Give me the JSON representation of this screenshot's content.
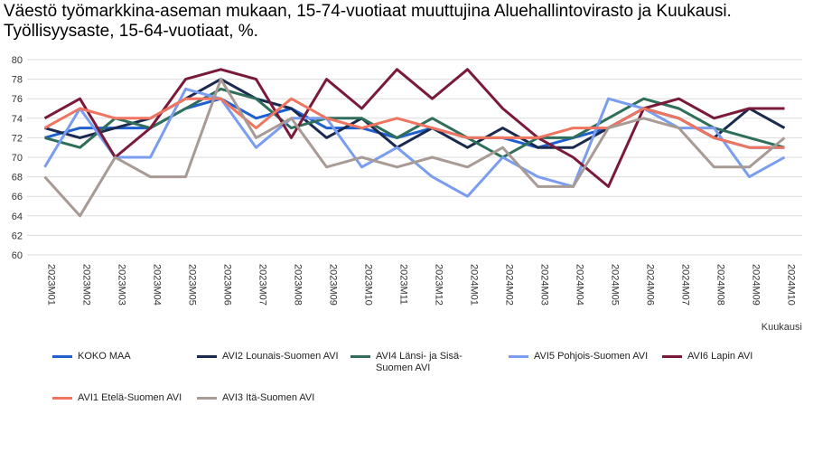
{
  "title": {
    "line1": "Väestö työmarkkina-aseman mukaan, 15-74-vuotiaat muuttujina Aluehallintovirasto ja Kuukausi.",
    "line2": "Työllisyysaste, 15-64-vuotiaat, %."
  },
  "chart_data": {
    "type": "line",
    "xlabel": "Kuukausi",
    "ylabel": "",
    "ylim": [
      60,
      80
    ],
    "yticks": [
      60,
      62,
      64,
      66,
      68,
      70,
      72,
      74,
      76,
      78,
      80
    ],
    "grid": true,
    "legend_position": "bottom",
    "categories": [
      "2023M01",
      "2023M02",
      "2023M03",
      "2023M04",
      "2023M05",
      "2023M06",
      "2023M07",
      "2023M08",
      "2023M09",
      "2023M10",
      "2023M11",
      "2023M12",
      "2024M01",
      "2024M02",
      "2024M03",
      "2024M04",
      "2024M05",
      "2024M06",
      "2024M07",
      "2024M08",
      "2024M09",
      "2024M10"
    ],
    "series": [
      {
        "name": "KOKO MAA",
        "color": "#1f5fcf",
        "values": [
          72,
          73,
          73,
          73,
          75,
          76,
          74,
          75,
          73,
          73,
          72,
          73,
          72,
          72,
          71,
          72,
          73,
          75,
          74,
          72,
          71,
          71
        ]
      },
      {
        "name": "AVI2 Lounais-Suomen AVI",
        "color": "#1a2a4f",
        "values": [
          73,
          72,
          73,
          74,
          76,
          78,
          76,
          75,
          72,
          74,
          71,
          73,
          71,
          73,
          71,
          71,
          73,
          75,
          74,
          72,
          75,
          73
        ]
      },
      {
        "name": "AVI4 Länsi- ja Sisä-Suomen AVI",
        "color": "#2f6e5a",
        "values": [
          72,
          71,
          74,
          73,
          75,
          77,
          76,
          73,
          74,
          74,
          72,
          74,
          72,
          70,
          72,
          72,
          74,
          76,
          75,
          73,
          72,
          71
        ]
      },
      {
        "name": "AVI5 Pohjois-Suomen AVI",
        "color": "#7b9df0",
        "values": [
          69,
          75,
          70,
          70,
          77,
          76,
          71,
          74,
          74,
          69,
          71,
          68,
          66,
          70,
          68,
          67,
          76,
          75,
          73,
          73,
          68,
          70
        ]
      },
      {
        "name": "AVI6 Lapin AVI",
        "color": "#7a1a3a",
        "values": [
          74,
          76,
          70,
          73,
          78,
          79,
          78,
          72,
          78,
          75,
          79,
          76,
          79,
          75,
          72,
          70,
          67,
          75,
          76,
          74,
          75,
          75
        ]
      },
      {
        "name": "AVI1 Etelä-Suomen AVI",
        "color": "#f07560",
        "values": [
          73,
          75,
          74,
          74,
          76,
          76,
          73,
          76,
          74,
          73,
          74,
          73,
          72,
          72,
          72,
          73,
          73,
          75,
          74,
          72,
          71,
          71
        ]
      },
      {
        "name": "AVI3 Itä-Suomen AVI",
        "color": "#a89a94",
        "values": [
          68,
          64,
          70,
          68,
          68,
          78,
          72,
          74,
          69,
          70,
          69,
          70,
          69,
          71,
          67,
          67,
          73,
          74,
          73,
          69,
          69,
          72
        ]
      }
    ]
  }
}
